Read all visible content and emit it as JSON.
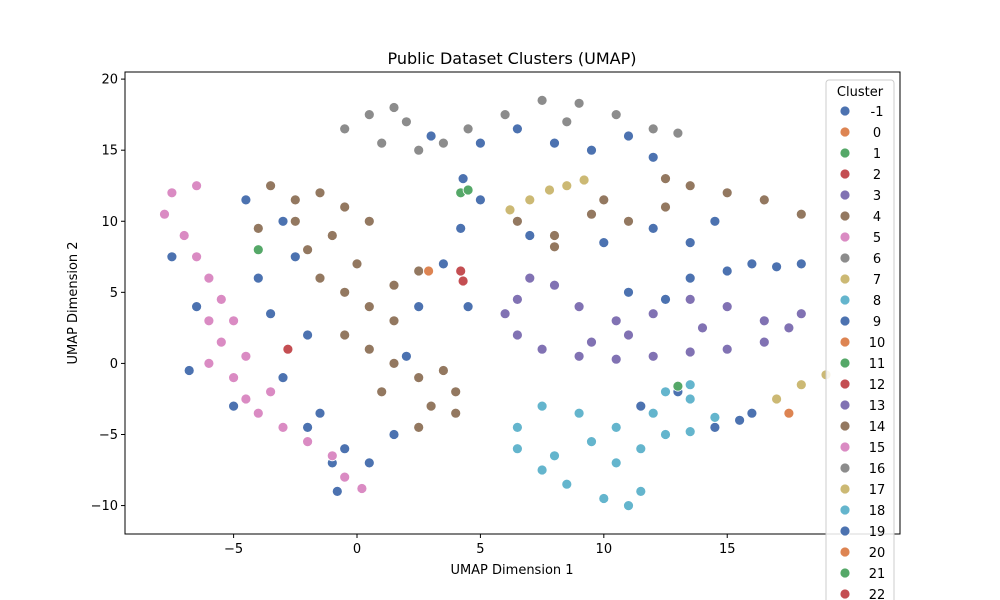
{
  "chart_data": {
    "type": "scatter",
    "title": "Public Dataset Clusters (UMAP)",
    "xlabel": "UMAP Dimension 1",
    "ylabel": "UMAP Dimension 2",
    "xlim": [
      -9.4,
      22.0
    ],
    "ylim": [
      -12.0,
      20.5
    ],
    "xticks": [
      -5,
      0,
      5,
      10,
      15
    ],
    "yticks": [
      -10,
      -5,
      0,
      5,
      10,
      15,
      20
    ],
    "grid": false,
    "legend": {
      "title": "Cluster",
      "placement": "top-right",
      "entries": [
        {
          "label": "-1",
          "color": "#4c72b0"
        },
        {
          "label": "0",
          "color": "#dd8452"
        },
        {
          "label": "1",
          "color": "#55a868"
        },
        {
          "label": "2",
          "color": "#c44e52"
        },
        {
          "label": "3",
          "color": "#8172b3"
        },
        {
          "label": "4",
          "color": "#937860"
        },
        {
          "label": "5",
          "color": "#da8bc3"
        },
        {
          "label": "6",
          "color": "#8c8c8c"
        },
        {
          "label": "7",
          "color": "#ccb974"
        },
        {
          "label": "8",
          "color": "#64b5cd"
        },
        {
          "label": "9",
          "color": "#4c72b0"
        },
        {
          "label": "10",
          "color": "#dd8452"
        },
        {
          "label": "11",
          "color": "#55a868"
        },
        {
          "label": "12",
          "color": "#c44e52"
        },
        {
          "label": "13",
          "color": "#8172b3"
        },
        {
          "label": "14",
          "color": "#937860"
        },
        {
          "label": "15",
          "color": "#da8bc3"
        },
        {
          "label": "16",
          "color": "#8c8c8c"
        },
        {
          "label": "17",
          "color": "#ccb974"
        },
        {
          "label": "18",
          "color": "#64b5cd"
        },
        {
          "label": "19",
          "color": "#4c72b0"
        },
        {
          "label": "20",
          "color": "#dd8452"
        },
        {
          "label": "21",
          "color": "#55a868"
        },
        {
          "label": "22",
          "color": "#c44e52"
        }
      ]
    },
    "series": [
      {
        "cluster": "-1",
        "color": "#4c72b0",
        "points": [
          [
            -4.5,
            11.5
          ],
          [
            -3.0,
            10.0
          ],
          [
            -2.5,
            7.5
          ],
          [
            -4.0,
            6.0
          ],
          [
            -3.5,
            3.5
          ],
          [
            -2.0,
            2.0
          ],
          [
            -3.0,
            -1.0
          ],
          [
            -1.5,
            -3.5
          ],
          [
            -0.5,
            -6.0
          ],
          [
            0.5,
            -7.0
          ],
          [
            1.5,
            -5.0
          ],
          [
            2.0,
            0.5
          ],
          [
            2.5,
            4.0
          ],
          [
            3.5,
            7.0
          ],
          [
            4.2,
            9.5
          ],
          [
            4.5,
            4.0
          ],
          [
            5.0,
            11.5
          ],
          [
            4.3,
            13.0
          ],
          [
            3.0,
            16.0
          ],
          [
            5.0,
            15.5
          ],
          [
            6.5,
            16.5
          ],
          [
            8.0,
            15.5
          ],
          [
            9.5,
            15.0
          ],
          [
            11.0,
            16.0
          ],
          [
            12.0,
            14.5
          ],
          [
            7.0,
            9.0
          ],
          [
            10.0,
            8.5
          ],
          [
            12.0,
            9.5
          ],
          [
            13.5,
            8.5
          ],
          [
            14.5,
            10.0
          ],
          [
            11.0,
            5.0
          ],
          [
            12.5,
            4.5
          ],
          [
            13.5,
            6.0
          ],
          [
            15.0,
            6.5
          ],
          [
            16.0,
            7.0
          ],
          [
            17.0,
            6.8
          ],
          [
            18.0,
            7.0
          ],
          [
            14.5,
            -4.5
          ],
          [
            15.5,
            -4.0
          ],
          [
            16.0,
            -3.5
          ],
          [
            13.0,
            -2.0
          ],
          [
            11.5,
            -3.0
          ],
          [
            -0.8,
            -9.0
          ],
          [
            -6.5,
            4.0
          ],
          [
            -6.8,
            -0.5
          ],
          [
            -7.5,
            7.5
          ],
          [
            -2.0,
            -4.5
          ],
          [
            1.0,
            -2.0
          ],
          [
            -5.0,
            -3.0
          ],
          [
            -1.0,
            -7.0
          ]
        ]
      },
      {
        "cluster": "4",
        "color": "#937860",
        "points": [
          [
            -3.5,
            12.5
          ],
          [
            -2.5,
            11.5
          ],
          [
            -1.5,
            12.0
          ],
          [
            -0.5,
            11.0
          ],
          [
            0.5,
            10.0
          ],
          [
            -1.0,
            9.0
          ],
          [
            -2.0,
            8.0
          ],
          [
            -1.5,
            6.0
          ],
          [
            -0.5,
            5.0
          ],
          [
            0.5,
            4.0
          ],
          [
            1.5,
            3.0
          ],
          [
            -0.5,
            2.0
          ],
          [
            0.5,
            1.0
          ],
          [
            1.5,
            0.0
          ],
          [
            2.5,
            -1.0
          ],
          [
            1.0,
            -2.0
          ],
          [
            3.0,
            -3.0
          ],
          [
            4.0,
            -3.5
          ],
          [
            2.5,
            -4.5
          ],
          [
            1.5,
            5.5
          ],
          [
            2.5,
            6.5
          ],
          [
            0.0,
            7.0
          ],
          [
            -2.5,
            10.0
          ],
          [
            -4.0,
            9.5
          ],
          [
            6.5,
            10.0
          ],
          [
            8.0,
            9.0
          ],
          [
            9.5,
            10.5
          ],
          [
            11.0,
            10.0
          ],
          [
            12.5,
            11.0
          ],
          [
            13.5,
            12.5
          ],
          [
            15.0,
            12.0
          ],
          [
            16.5,
            11.5
          ],
          [
            18.0,
            10.5
          ],
          [
            12.5,
            13.0
          ],
          [
            8.0,
            8.2
          ],
          [
            10.0,
            11.5
          ],
          [
            4.0,
            -2.0
          ],
          [
            3.5,
            -0.5
          ]
        ]
      },
      {
        "cluster": "15",
        "color": "#da8bc3",
        "points": [
          [
            -7.5,
            12.0
          ],
          [
            -7.8,
            10.5
          ],
          [
            -7.0,
            9.0
          ],
          [
            -6.5,
            7.5
          ],
          [
            -6.0,
            6.0
          ],
          [
            -5.5,
            4.5
          ],
          [
            -6.0,
            3.0
          ],
          [
            -5.5,
            1.5
          ],
          [
            -6.0,
            0.0
          ],
          [
            -5.0,
            -1.0
          ],
          [
            -4.5,
            -2.5
          ],
          [
            -4.0,
            -3.5
          ],
          [
            -3.0,
            -4.5
          ],
          [
            -2.0,
            -5.5
          ],
          [
            -1.0,
            -6.5
          ],
          [
            -0.5,
            -8.0
          ],
          [
            0.2,
            -8.8
          ],
          [
            -4.5,
            0.5
          ],
          [
            -5.0,
            3.0
          ],
          [
            -6.5,
            12.5
          ],
          [
            -3.5,
            -2.0
          ]
        ]
      },
      {
        "cluster": "13",
        "color": "#8172b3",
        "points": [
          [
            7.0,
            6.0
          ],
          [
            6.5,
            4.5
          ],
          [
            6.0,
            3.5
          ],
          [
            6.5,
            2.0
          ],
          [
            7.5,
            1.0
          ],
          [
            9.0,
            0.5
          ],
          [
            10.5,
            0.3
          ],
          [
            12.0,
            0.5
          ],
          [
            13.5,
            0.8
          ],
          [
            15.0,
            1.0
          ],
          [
            16.5,
            1.5
          ],
          [
            17.5,
            2.5
          ],
          [
            18.0,
            3.5
          ],
          [
            16.5,
            3.0
          ],
          [
            15.0,
            4.0
          ],
          [
            13.5,
            4.5
          ],
          [
            12.0,
            3.5
          ],
          [
            10.5,
            3.0
          ],
          [
            9.0,
            4.0
          ],
          [
            8.0,
            5.5
          ],
          [
            11.0,
            2.0
          ],
          [
            9.5,
            1.5
          ],
          [
            14.0,
            2.5
          ]
        ]
      },
      {
        "cluster": "18",
        "color": "#64b5cd",
        "points": [
          [
            7.5,
            -3.0
          ],
          [
            6.5,
            -4.5
          ],
          [
            6.5,
            -6.0
          ],
          [
            7.5,
            -7.5
          ],
          [
            8.5,
            -8.5
          ],
          [
            10.0,
            -9.5
          ],
          [
            11.0,
            -10.0
          ],
          [
            11.5,
            -9.0
          ],
          [
            10.5,
            -7.0
          ],
          [
            9.5,
            -5.5
          ],
          [
            10.5,
            -4.5
          ],
          [
            12.0,
            -3.5
          ],
          [
            13.5,
            -2.5
          ],
          [
            14.5,
            -3.8
          ],
          [
            13.5,
            -4.8
          ],
          [
            12.5,
            -5.0
          ],
          [
            11.5,
            -6.0
          ],
          [
            12.5,
            -2.0
          ],
          [
            13.5,
            -1.5
          ],
          [
            9.0,
            -3.5
          ],
          [
            8.0,
            -6.5
          ]
        ]
      },
      {
        "cluster": "6",
        "color": "#8c8c8c",
        "points": [
          [
            -0.5,
            16.5
          ],
          [
            0.5,
            17.5
          ],
          [
            1.5,
            18.0
          ],
          [
            2.0,
            17.0
          ],
          [
            1.0,
            15.5
          ],
          [
            2.5,
            15.0
          ],
          [
            3.5,
            15.5
          ],
          [
            4.5,
            16.5
          ],
          [
            6.0,
            17.5
          ],
          [
            7.5,
            18.5
          ],
          [
            9.0,
            18.3
          ],
          [
            10.5,
            17.5
          ],
          [
            12.0,
            16.5
          ],
          [
            13.0,
            16.2
          ],
          [
            8.5,
            17.0
          ]
        ]
      },
      {
        "cluster": "17",
        "color": "#ccb974",
        "points": [
          [
            6.2,
            10.8
          ],
          [
            7.0,
            11.5
          ],
          [
            7.8,
            12.2
          ],
          [
            8.5,
            12.5
          ],
          [
            9.2,
            12.9
          ],
          [
            17.0,
            -2.5
          ],
          [
            18.0,
            -1.5
          ],
          [
            19.0,
            -0.8
          ]
        ]
      },
      {
        "cluster": "0",
        "color": "#dd8452",
        "points": [
          [
            2.9,
            6.5
          ],
          [
            17.5,
            -3.5
          ]
        ]
      },
      {
        "cluster": "2",
        "color": "#c44e52",
        "points": [
          [
            -2.8,
            1.0
          ],
          [
            4.2,
            6.5
          ],
          [
            4.3,
            5.8
          ]
        ]
      },
      {
        "cluster": "1",
        "color": "#55a868",
        "points": [
          [
            4.2,
            12.0
          ],
          [
            4.5,
            12.2
          ],
          [
            -4.0,
            8.0
          ],
          [
            13.0,
            -1.6
          ]
        ]
      }
    ]
  }
}
